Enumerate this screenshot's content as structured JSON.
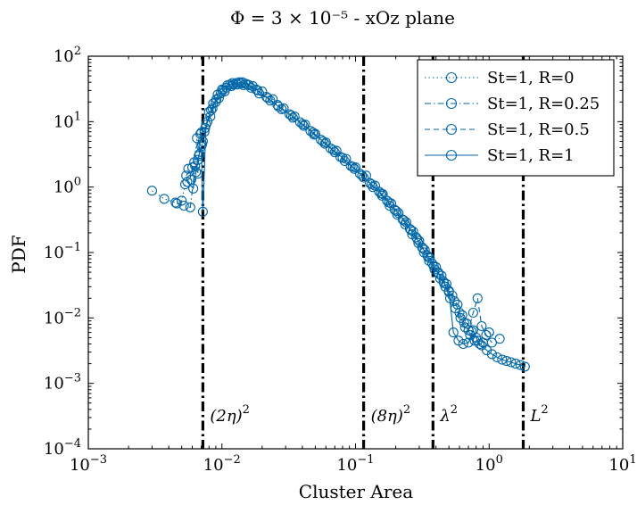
{
  "chart_data": {
    "type": "scatter",
    "title": "Φ = 3 × 10⁻⁵ - xOz plane",
    "xlabel": "Cluster Area",
    "ylabel": "PDF",
    "xscale": "log",
    "yscale": "log",
    "xlim": [
      0.001,
      10
    ],
    "ylim": [
      0.0001,
      100
    ],
    "grid": false,
    "legend_position": "top-right",
    "series_color": "#0066a8",
    "x_ticks": [
      {
        "value": 0.001,
        "base": "10",
        "exp": "−3"
      },
      {
        "value": 0.01,
        "base": "10",
        "exp": "−2"
      },
      {
        "value": 0.1,
        "base": "10",
        "exp": "−1"
      },
      {
        "value": 1,
        "base": "10",
        "exp": "0"
      },
      {
        "value": 10,
        "base": "10",
        "exp": "1"
      }
    ],
    "y_ticks": [
      {
        "value": 0.0001,
        "base": "10",
        "exp": "−4"
      },
      {
        "value": 0.001,
        "base": "10",
        "exp": "−3"
      },
      {
        "value": 0.01,
        "base": "10",
        "exp": "−2"
      },
      {
        "value": 0.1,
        "base": "10",
        "exp": "−1"
      },
      {
        "value": 1,
        "base": "10",
        "exp": "0"
      },
      {
        "value": 10,
        "base": "10",
        "exp": "1"
      },
      {
        "value": 100,
        "base": "10",
        "exp": "2"
      }
    ],
    "vertical_lines": [
      {
        "x": 0.0072,
        "label": "(2η)",
        "sup": "2"
      },
      {
        "x": 0.115,
        "label": "(8η)",
        "sup": "2"
      },
      {
        "x": 0.38,
        "label": "λ",
        "sup": "2"
      },
      {
        "x": 1.8,
        "label": "L",
        "sup": "2"
      }
    ],
    "series": [
      {
        "name": "St=1, R=0",
        "dash": "dotted",
        "points": [
          [
            0.003,
            0.88
          ],
          [
            0.0037,
            0.66
          ],
          [
            0.0045,
            0.58
          ],
          [
            0.005,
            0.62
          ],
          [
            0.0053,
            1.1
          ],
          [
            0.0056,
            1.9
          ],
          [
            0.0059,
            1.3
          ],
          [
            0.0062,
            2.4
          ],
          [
            0.0065,
            5.6
          ],
          [
            0.0068,
            3.2
          ],
          [
            0.0071,
            4.5
          ],
          [
            0.0075,
            8.0
          ],
          [
            0.008,
            14
          ],
          [
            0.0086,
            19
          ],
          [
            0.0093,
            26
          ],
          [
            0.01,
            31
          ],
          [
            0.011,
            36
          ],
          [
            0.012,
            39
          ],
          [
            0.0135,
            40
          ],
          [
            0.015,
            38
          ],
          [
            0.017,
            35
          ],
          [
            0.02,
            29
          ],
          [
            0.024,
            22
          ],
          [
            0.029,
            16
          ],
          [
            0.035,
            12
          ],
          [
            0.042,
            9.0
          ],
          [
            0.05,
            6.5
          ],
          [
            0.06,
            4.8
          ],
          [
            0.072,
            3.6
          ],
          [
            0.085,
            2.7
          ],
          [
            0.1,
            2.0
          ],
          [
            0.12,
            1.5
          ],
          [
            0.14,
            1.05
          ],
          [
            0.16,
            0.78
          ],
          [
            0.185,
            0.56
          ],
          [
            0.21,
            0.4
          ],
          [
            0.24,
            0.29
          ],
          [
            0.27,
            0.21
          ],
          [
            0.3,
            0.15
          ],
          [
            0.33,
            0.11
          ],
          [
            0.36,
            0.082
          ],
          [
            0.4,
            0.06
          ],
          [
            0.44,
            0.044
          ],
          [
            0.48,
            0.033
          ],
          [
            0.53,
            0.022
          ],
          [
            0.58,
            0.016
          ],
          [
            0.63,
            0.011
          ],
          [
            0.68,
            0.0082
          ],
          [
            0.74,
            0.0062
          ],
          [
            0.8,
            0.005
          ],
          [
            0.9,
            0.0042
          ],
          [
            1.0,
            0.006
          ],
          [
            1.2,
            0.0048
          ]
        ]
      },
      {
        "name": "St=1, R=0.25",
        "dash": "dashdot",
        "points": [
          [
            0.0046,
            0.56
          ],
          [
            0.0052,
            0.52
          ],
          [
            0.0058,
            0.49
          ],
          [
            0.0063,
            2.1
          ],
          [
            0.0066,
            1.6
          ],
          [
            0.0069,
            6.5
          ],
          [
            0.0072,
            5.0
          ],
          [
            0.0078,
            10
          ],
          [
            0.0085,
            16
          ],
          [
            0.0095,
            23
          ],
          [
            0.0105,
            29
          ],
          [
            0.0118,
            35
          ],
          [
            0.013,
            37
          ],
          [
            0.0145,
            36
          ],
          [
            0.0165,
            33
          ],
          [
            0.019,
            27
          ],
          [
            0.023,
            21
          ],
          [
            0.028,
            15.5
          ],
          [
            0.034,
            11.5
          ],
          [
            0.041,
            8.6
          ],
          [
            0.049,
            6.3
          ],
          [
            0.059,
            4.6
          ],
          [
            0.07,
            3.4
          ],
          [
            0.083,
            2.5
          ],
          [
            0.098,
            1.9
          ],
          [
            0.115,
            1.4
          ],
          [
            0.135,
            1.0
          ],
          [
            0.158,
            0.74
          ],
          [
            0.18,
            0.52
          ],
          [
            0.205,
            0.38
          ],
          [
            0.235,
            0.27
          ],
          [
            0.265,
            0.19
          ],
          [
            0.295,
            0.14
          ],
          [
            0.325,
            0.1
          ],
          [
            0.355,
            0.075
          ],
          [
            0.39,
            0.055
          ],
          [
            0.43,
            0.04
          ],
          [
            0.47,
            0.03
          ],
          [
            0.51,
            0.02
          ],
          [
            0.56,
            0.014
          ],
          [
            0.61,
            0.01
          ],
          [
            0.66,
            0.0072
          ],
          [
            0.72,
            0.0055
          ],
          [
            0.78,
            0.0045
          ],
          [
            0.85,
            0.004
          ]
        ]
      },
      {
        "name": "St=1, R=0.5",
        "dash": "dashed",
        "points": [
          [
            0.0054,
            1.5
          ],
          [
            0.006,
            2.0
          ],
          [
            0.0064,
            1.7
          ],
          [
            0.0067,
            3.0
          ],
          [
            0.007,
            6.8
          ],
          [
            0.0074,
            7.0
          ],
          [
            0.0082,
            12
          ],
          [
            0.009,
            20
          ],
          [
            0.0098,
            27
          ],
          [
            0.0108,
            33
          ],
          [
            0.0122,
            37
          ],
          [
            0.0138,
            38
          ],
          [
            0.0155,
            37
          ],
          [
            0.018,
            31
          ],
          [
            0.0215,
            24
          ],
          [
            0.026,
            18
          ],
          [
            0.032,
            13
          ],
          [
            0.0385,
            9.8
          ],
          [
            0.046,
            7.2
          ],
          [
            0.055,
            5.3
          ],
          [
            0.065,
            3.9
          ],
          [
            0.077,
            2.9
          ],
          [
            0.092,
            2.1
          ],
          [
            0.108,
            1.6
          ],
          [
            0.128,
            1.15
          ],
          [
            0.15,
            0.85
          ],
          [
            0.172,
            0.62
          ],
          [
            0.196,
            0.45
          ],
          [
            0.225,
            0.32
          ],
          [
            0.255,
            0.23
          ],
          [
            0.285,
            0.17
          ],
          [
            0.315,
            0.12
          ],
          [
            0.345,
            0.09
          ],
          [
            0.375,
            0.068
          ],
          [
            0.415,
            0.05
          ],
          [
            0.455,
            0.036
          ],
          [
            0.5,
            0.026
          ],
          [
            0.55,
            0.018
          ],
          [
            0.6,
            0.012
          ],
          [
            0.65,
            0.0085
          ],
          [
            0.7,
            0.0065
          ],
          [
            0.76,
            0.012
          ],
          [
            0.82,
            0.02
          ],
          [
            0.88,
            0.0075
          ],
          [
            0.95,
            0.0055
          ],
          [
            1.05,
            0.0042
          ]
        ]
      },
      {
        "name": "St=1, R=1",
        "dash": "solid",
        "points": [
          [
            0.0055,
            1.2
          ],
          [
            0.0061,
            0.95
          ],
          [
            0.0066,
            2.6
          ],
          [
            0.007,
            4.2
          ],
          [
            0.0072,
            0.42
          ],
          [
            0.0076,
            9.0
          ],
          [
            0.0083,
            15
          ],
          [
            0.0091,
            22
          ],
          [
            0.0102,
            30
          ],
          [
            0.0115,
            37
          ],
          [
            0.0128,
            39
          ],
          [
            0.0142,
            40
          ],
          [
            0.016,
            36
          ],
          [
            0.0185,
            30
          ],
          [
            0.022,
            23
          ],
          [
            0.0265,
            17
          ],
          [
            0.033,
            12.5
          ],
          [
            0.04,
            9.2
          ],
          [
            0.048,
            6.8
          ],
          [
            0.057,
            5.0
          ],
          [
            0.068,
            3.7
          ],
          [
            0.08,
            2.8
          ],
          [
            0.095,
            2.05
          ],
          [
            0.112,
            1.5
          ],
          [
            0.132,
            1.1
          ],
          [
            0.155,
            0.8
          ],
          [
            0.178,
            0.58
          ],
          [
            0.202,
            0.43
          ],
          [
            0.23,
            0.31
          ],
          [
            0.26,
            0.22
          ],
          [
            0.29,
            0.16
          ],
          [
            0.32,
            0.115
          ],
          [
            0.35,
            0.085
          ],
          [
            0.385,
            0.062
          ],
          [
            0.42,
            0.047
          ],
          [
            0.46,
            0.034
          ],
          [
            0.5,
            0.025
          ],
          [
            0.54,
            0.006
          ],
          [
            0.59,
            0.0045
          ],
          [
            0.64,
            0.004
          ],
          [
            0.7,
            0.0042
          ],
          [
            0.76,
            0.0065
          ],
          [
            0.82,
            0.0045
          ],
          [
            0.88,
            0.0038
          ],
          [
            0.96,
            0.0032
          ],
          [
            1.05,
            0.0028
          ],
          [
            1.15,
            0.0025
          ],
          [
            1.25,
            0.0023
          ],
          [
            1.35,
            0.0022
          ],
          [
            1.46,
            0.0021
          ],
          [
            1.58,
            0.002
          ],
          [
            1.72,
            0.0019
          ],
          [
            1.85,
            0.0018
          ]
        ]
      }
    ]
  }
}
